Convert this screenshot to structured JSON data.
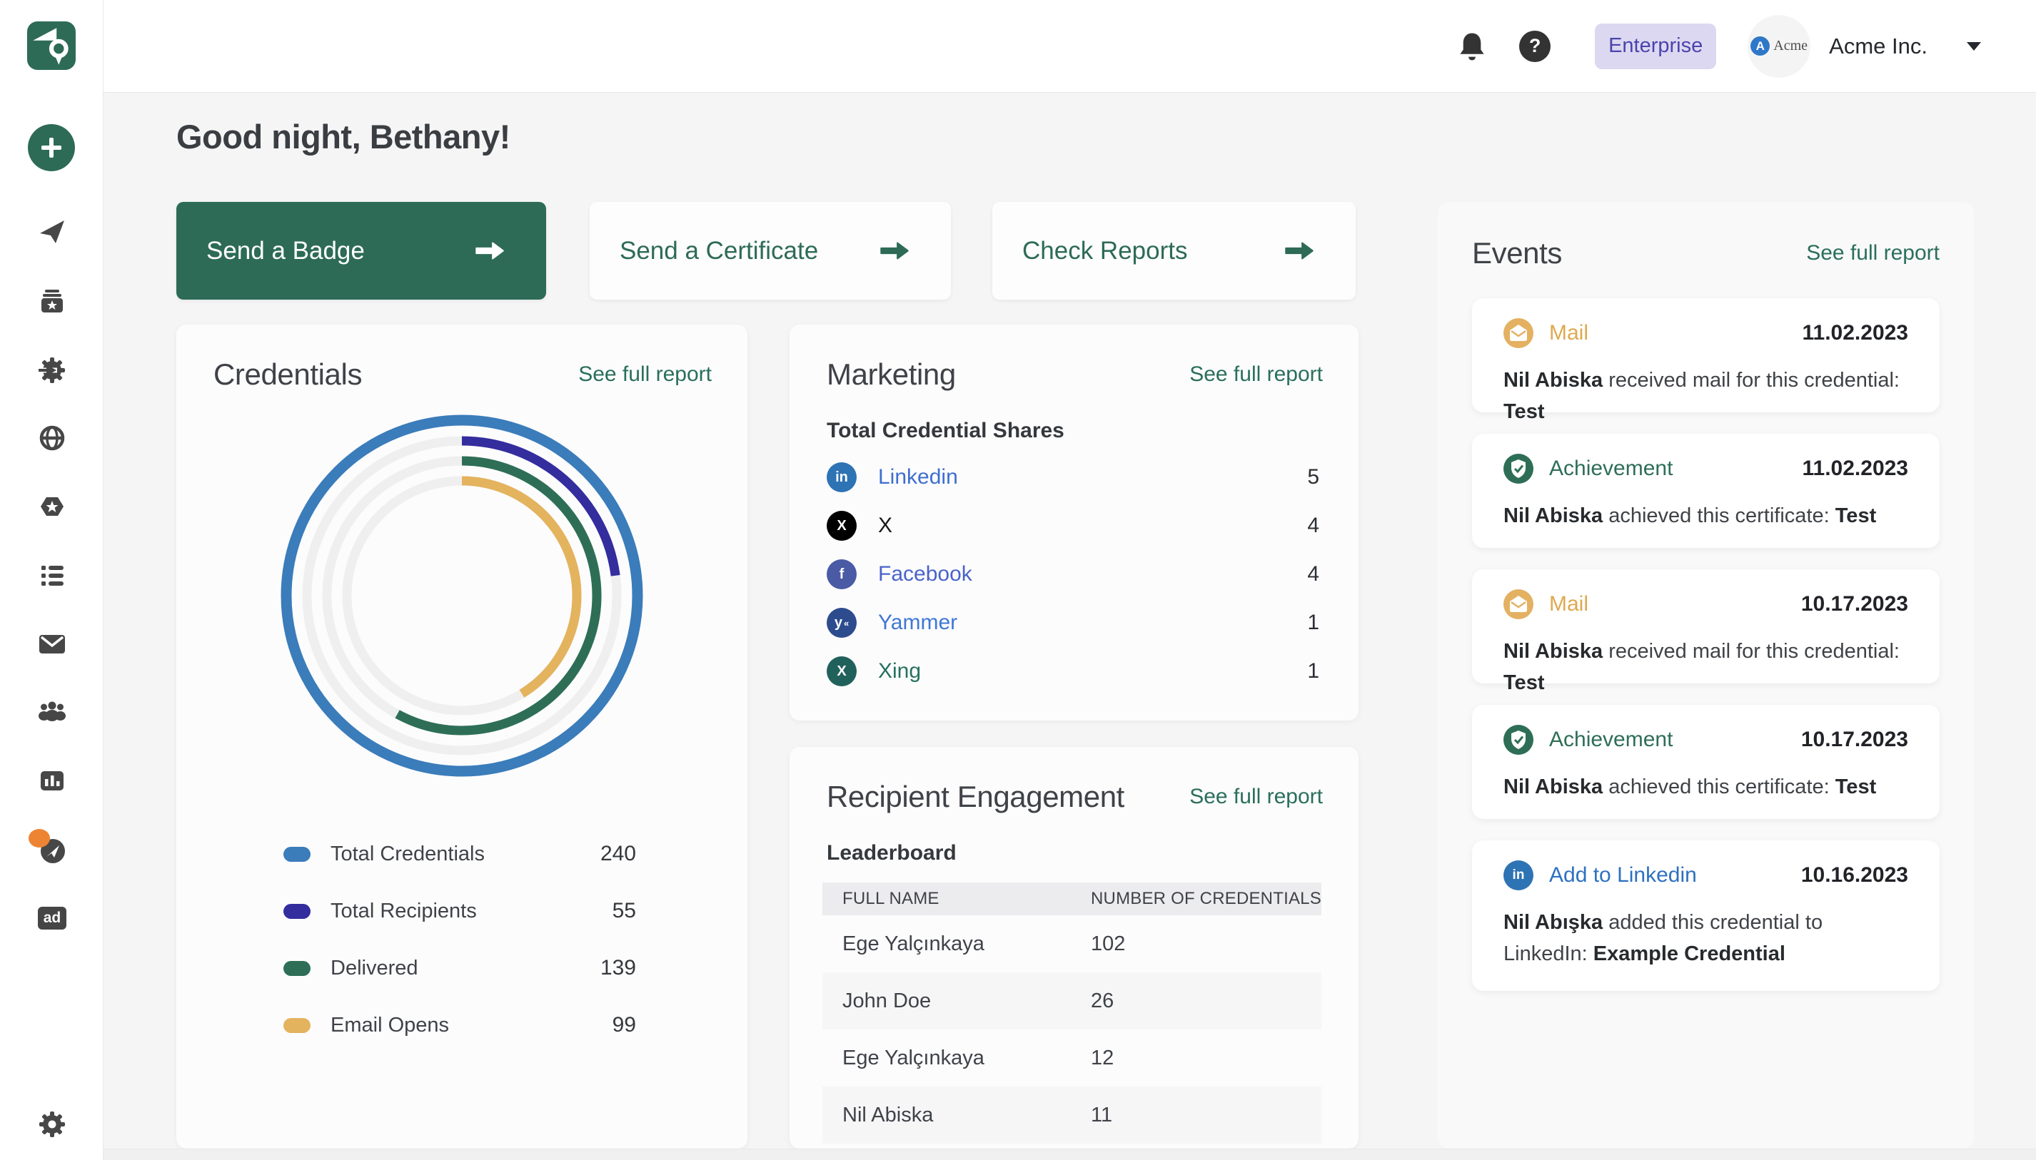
{
  "topbar": {
    "enterprise_label": "Enterprise",
    "help_label": "?",
    "avatar_logo_letter": "A",
    "avatar_logo_text": "Acme",
    "org_name": "Acme Inc."
  },
  "sidebar": {
    "ad_label": "ad",
    "icons": [
      "certificate-logo",
      "plus-create",
      "send-plane",
      "archive-star",
      "gear-arrow-integrations",
      "globe",
      "hexagon-star-badge",
      "list",
      "mail-envelope",
      "people-group",
      "bar-chart-analytics",
      "compass-discover",
      "ad",
      "settings-gear"
    ],
    "notification_dot_color": "#ec8433"
  },
  "greeting": "Good night, Bethany!",
  "actions": {
    "send_badge": "Send a Badge",
    "send_certificate": "Send a Certificate",
    "check_reports": "Check Reports"
  },
  "colors": {
    "brand_green": "#2d6b56",
    "link_green": "#2a6f5b",
    "page_bg": "#f5f5f6",
    "enterprise_bg": "#dcd8f1",
    "enterprise_text": "#4b44ad"
  },
  "credentials": {
    "title": "Credentials",
    "report_link": "See full report",
    "legend": [
      {
        "label": "Total Credentials",
        "value": 240,
        "color": "#3b7cba"
      },
      {
        "label": "Total Recipients",
        "value": 55,
        "color": "#332d9e"
      },
      {
        "label": "Delivered",
        "value": 139,
        "color": "#2e6e57"
      },
      {
        "label": "Email Opens",
        "value": 99,
        "color": "#e4b35e"
      }
    ]
  },
  "chart_data": {
    "type": "radial-progress-rings",
    "title": "Credentials",
    "max": 240,
    "rings": [
      {
        "label": "Total Credentials",
        "value": 240,
        "color": "#3b7cba"
      },
      {
        "label": "Total Recipients",
        "value": 55,
        "color": "#332d9e"
      },
      {
        "label": "Delivered",
        "value": 139,
        "color": "#2e6e57"
      },
      {
        "label": "Email Opens",
        "value": 99,
        "color": "#e4b35e"
      }
    ],
    "track_color": "#efefef",
    "start_angle_deg": 0,
    "direction": "clockwise"
  },
  "marketing": {
    "title": "Marketing",
    "report_link": "See full report",
    "subtitle": "Total Credential Shares",
    "rows": [
      {
        "platform": "Linkedin",
        "value": 5,
        "icon": "linkedin-icon",
        "icon_bg": "#2e73b4",
        "label_color": "#3e6ecf"
      },
      {
        "platform": "X",
        "value": 4,
        "icon": "x-icon",
        "icon_bg": "#000000",
        "label_color": "#17181a"
      },
      {
        "platform": "Facebook",
        "value": 4,
        "icon": "facebook-icon",
        "icon_bg": "#4a5aa5",
        "label_color": "#4a63c9"
      },
      {
        "platform": "Yammer",
        "value": 1,
        "icon": "yammer-icon",
        "icon_bg": "#2d4c8e",
        "label_color": "#3f78d4"
      },
      {
        "platform": "Xing",
        "value": 1,
        "icon": "xing-icon",
        "icon_bg": "#21615c",
        "label_color": "#27705f"
      }
    ]
  },
  "engagement": {
    "title": "Recipient Engagement",
    "report_link": "See full report",
    "subtitle": "Leaderboard",
    "columns": [
      "FULL NAME",
      "NUMBER OF CREDENTIALS"
    ],
    "rows": [
      {
        "name": "Ege Yalçınkaya",
        "credentials": 102
      },
      {
        "name": "John Doe",
        "credentials": 26
      },
      {
        "name": "Ege Yalçınkaya",
        "credentials": 12
      },
      {
        "name": "Nil Abiska",
        "credentials": 11
      }
    ]
  },
  "events": {
    "title": "Events",
    "report_link": "See full report",
    "items": [
      {
        "type": "Mail",
        "icon": "mail-icon",
        "date": "11.02.2023",
        "name": "Nil Abiska",
        "middle": " received mail for this credential: ",
        "target": "Test"
      },
      {
        "type": "Achievement",
        "icon": "shield-check-icon",
        "date": "11.02.2023",
        "name": "Nil Abiska",
        "middle": " achieved this certificate: ",
        "target": "Test"
      },
      {
        "type": "Mail",
        "icon": "mail-icon",
        "date": "10.17.2023",
        "name": "Nil Abiska",
        "middle": " received mail for this credential: ",
        "target": "Test"
      },
      {
        "type": "Achievement",
        "icon": "shield-check-icon",
        "date": "10.17.2023",
        "name": "Nil Abiska",
        "middle": " achieved this certificate: ",
        "target": "Test"
      },
      {
        "type": "Add to Linkedin",
        "icon": "linkedin-icon",
        "date": "10.16.2023",
        "name": "Nil Abışka",
        "middle": " added this credential to LinkedIn: ",
        "target": "Example Credential"
      }
    ]
  }
}
